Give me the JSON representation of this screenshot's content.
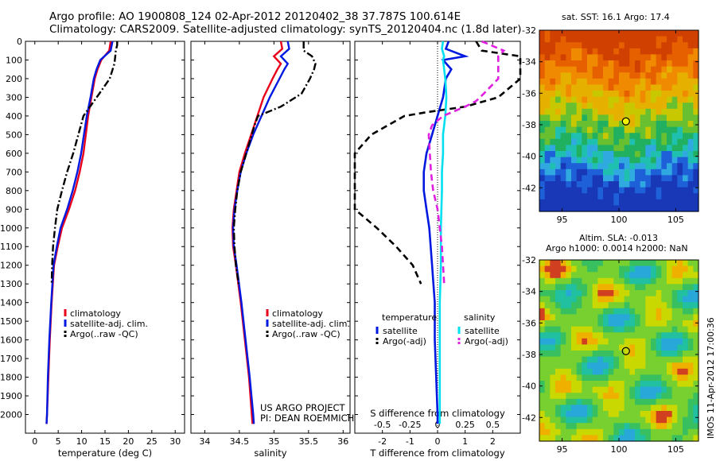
{
  "header": {
    "line1": "Argo profile: AO 1900808_124 02-Apr-2012 20120402_38 37.787S 100.614E",
    "line2": "Climatology: CARS2009. Satellite-adjusted climatology: synTS_20120404.nc (1.8d later)"
  },
  "colors": {
    "climatology": "#e8001a",
    "satellite": "#0018e0",
    "argo": "#000000",
    "sal_sat": "#00e0f0",
    "sal_argo": "#e020e0"
  },
  "project": {
    "line1": "US ARGO PROJECT",
    "line2": "PI: DEAN ROEMMICH"
  },
  "maps": {
    "sst_label": "sat. SST: 16.1 Argo: 17.4",
    "sla_label1": "Altim. SLA: -0.013",
    "sla_label2": "Argo h1000: 0.0014 h2000: NaN",
    "credit": "IMOS 11-Apr-2012 17:00:36",
    "lat_ticks": [
      "-32",
      "-34",
      "-36",
      "-38",
      "-40",
      "-42"
    ],
    "lon_ticks": [
      "95",
      "100",
      "105"
    ],
    "float_lat": -37.787,
    "float_lon": 100.614
  },
  "chart_data": [
    {
      "type": "line",
      "xlabel": "temperature (deg C)",
      "ylabel": "",
      "xlim": [
        -2,
        32
      ],
      "ylim": [
        2100,
        0
      ],
      "xticks": [
        "0",
        "5",
        "10",
        "15",
        "20",
        "25",
        "30"
      ],
      "yticks": [
        "0",
        "100",
        "200",
        "300",
        "400",
        "500",
        "600",
        "700",
        "800",
        "900",
        "1000",
        "1100",
        "1200",
        "1300",
        "1400",
        "1500",
        "1600",
        "1700",
        "1800",
        "1900",
        "2000"
      ],
      "legend": [
        "climatology",
        "satellite-adj. clim.",
        "Argo(..raw -QC)"
      ],
      "series": [
        {
          "name": "climatology",
          "depth": [
            0,
            50,
            100,
            150,
            200,
            300,
            400,
            500,
            600,
            700,
            800,
            900,
            1000,
            1100,
            1200,
            1400,
            1600,
            1800,
            2000,
            2050
          ],
          "values": [
            16.2,
            15.9,
            14.2,
            13.4,
            12.8,
            12.1,
            11.4,
            10.9,
            10.4,
            9.6,
            8.6,
            7.3,
            5.8,
            4.9,
            4.1,
            3.6,
            3.2,
            2.9,
            2.6,
            2.5
          ]
        },
        {
          "name": "satellite-adj. clim.",
          "depth": [
            0,
            50,
            100,
            150,
            200,
            300,
            400,
            500,
            600,
            700,
            800,
            900,
            1000,
            1100,
            1200,
            1400,
            1600,
            1800,
            2000,
            2050
          ],
          "values": [
            16.6,
            16.2,
            14.0,
            13.2,
            12.6,
            11.9,
            11.1,
            10.5,
            9.9,
            9.1,
            8.1,
            6.9,
            5.5,
            4.7,
            4.0,
            3.5,
            3.1,
            2.8,
            2.6,
            2.5
          ]
        },
        {
          "name": "Argo(..raw -QC)",
          "depth": [
            0,
            20,
            50,
            80,
            120,
            200,
            280,
            350,
            400,
            500,
            600,
            700,
            800,
            900,
            1000,
            1100,
            1200,
            1300
          ],
          "values": [
            17.6,
            17.6,
            17.3,
            17.2,
            17.0,
            16.0,
            13.8,
            11.8,
            10.4,
            9.3,
            8.2,
            6.9,
            5.8,
            4.8,
            4.3,
            3.9,
            3.7,
            3.6
          ]
        }
      ]
    },
    {
      "type": "line",
      "xlabel": "salinity",
      "ylabel": "",
      "xlim": [
        33.8,
        36.1
      ],
      "ylim": [
        2100,
        0
      ],
      "xticks": [
        "34",
        "34.5",
        "35",
        "35.5",
        "36"
      ],
      "legend": [
        "climatology",
        "satellite-adj. clim.",
        "Argo(..raw -QC)"
      ],
      "series": [
        {
          "name": "climatology",
          "depth": [
            0,
            40,
            80,
            120,
            150,
            200,
            300,
            400,
            500,
            600,
            700,
            800,
            900,
            1000,
            1100,
            1200,
            1400,
            1600,
            1800,
            2000,
            2050
          ],
          "values": [
            35.1,
            35.12,
            35.0,
            35.1,
            35.05,
            34.98,
            34.85,
            34.76,
            34.67,
            34.58,
            34.5,
            34.46,
            34.42,
            34.4,
            34.41,
            34.45,
            34.52,
            34.58,
            34.64,
            34.68,
            34.69
          ]
        },
        {
          "name": "satellite-adj. clim.",
          "depth": [
            0,
            40,
            80,
            120,
            150,
            200,
            300,
            400,
            500,
            600,
            700,
            800,
            900,
            1000,
            1100,
            1200,
            1400,
            1600,
            1800,
            2000,
            2050
          ],
          "values": [
            35.2,
            35.22,
            35.1,
            35.2,
            35.15,
            35.08,
            34.94,
            34.82,
            34.7,
            34.6,
            34.52,
            34.47,
            34.43,
            34.41,
            34.42,
            34.46,
            34.53,
            34.59,
            34.65,
            34.7,
            34.71
          ]
        },
        {
          "name": "Argo(..raw -QC)",
          "depth": [
            0,
            20,
            50,
            80,
            120,
            150,
            200,
            280,
            350,
            400,
            450,
            500,
            600,
            700,
            800,
            900,
            1000,
            1100,
            1200,
            1300
          ],
          "values": [
            35.43,
            35.43,
            35.43,
            35.55,
            35.6,
            35.58,
            35.52,
            35.4,
            35.1,
            34.77,
            34.72,
            34.68,
            34.6,
            34.52,
            34.47,
            34.44,
            34.42,
            34.43,
            34.45,
            34.49
          ]
        }
      ]
    },
    {
      "type": "line",
      "xlabel": "T difference from climatology",
      "xlabel2": "S difference from climatology",
      "xlim": [
        -3,
        3
      ],
      "ylim": [
        2100,
        0
      ],
      "xticks": [
        "-2",
        "-1",
        "0",
        "1",
        "2"
      ],
      "xticks_s": [
        "-0.5",
        "-0.25",
        "0",
        "0.25",
        "0.5"
      ],
      "legend_t": {
        "title": "temperature",
        "items": [
          "satellite",
          "Argo(-adj)"
        ]
      },
      "legend_s": {
        "title": "salinity",
        "items": [
          "satellite",
          "Argo(-adj)"
        ]
      },
      "series": [
        {
          "name": "temperature satellite",
          "depth": [
            0,
            40,
            80,
            100,
            150,
            200,
            300,
            400,
            500,
            600,
            700,
            800,
            900,
            1000,
            1200,
            1400,
            1600,
            1800,
            2000,
            2050
          ],
          "values": [
            0.4,
            0.3,
            1.0,
            0.2,
            0.5,
            0.3,
            0.2,
            0.0,
            -0.2,
            -0.4,
            -0.5,
            -0.5,
            -0.4,
            -0.3,
            -0.2,
            -0.1,
            -0.1,
            -0.05,
            0.0,
            0.0
          ]
        },
        {
          "name": "temperature Argo(-adj)",
          "depth": [
            0,
            50,
            80,
            120,
            200,
            300,
            350,
            380,
            400,
            500,
            600,
            700,
            800,
            900,
            1000,
            1100,
            1200,
            1300
          ],
          "values": [
            1.4,
            1.6,
            3.0,
            3.4,
            3.2,
            2.2,
            1.0,
            -0.4,
            -1.2,
            -2.4,
            -3.0,
            -3.4,
            -3.6,
            -3.2,
            -2.2,
            -1.5,
            -0.9,
            -0.6
          ]
        },
        {
          "name": "salinity satellite",
          "depth": [
            0,
            40,
            80,
            100,
            150,
            200,
            300,
            400,
            500,
            600,
            700,
            800,
            1000,
            1200,
            1400,
            1600,
            1800,
            2000,
            2050
          ],
          "values": [
            0.05,
            0.04,
            0.06,
            0.05,
            0.06,
            0.07,
            0.08,
            0.07,
            0.05,
            0.05,
            0.04,
            0.04,
            0.03,
            0.03,
            0.02,
            0.02,
            0.02,
            0.02,
            0.02
          ]
        },
        {
          "name": "salinity Argo(-adj)",
          "depth": [
            0,
            50,
            80,
            120,
            200,
            280,
            320,
            350,
            400,
            450,
            500,
            600,
            700,
            800,
            900,
            1000,
            1100,
            1200,
            1300
          ],
          "values": [
            0.4,
            0.6,
            0.55,
            0.55,
            0.55,
            0.42,
            0.35,
            0.25,
            0.05,
            -0.05,
            -0.08,
            -0.07,
            -0.06,
            -0.04,
            0.0,
            0.02,
            0.04,
            0.05,
            0.06
          ]
        }
      ]
    }
  ]
}
